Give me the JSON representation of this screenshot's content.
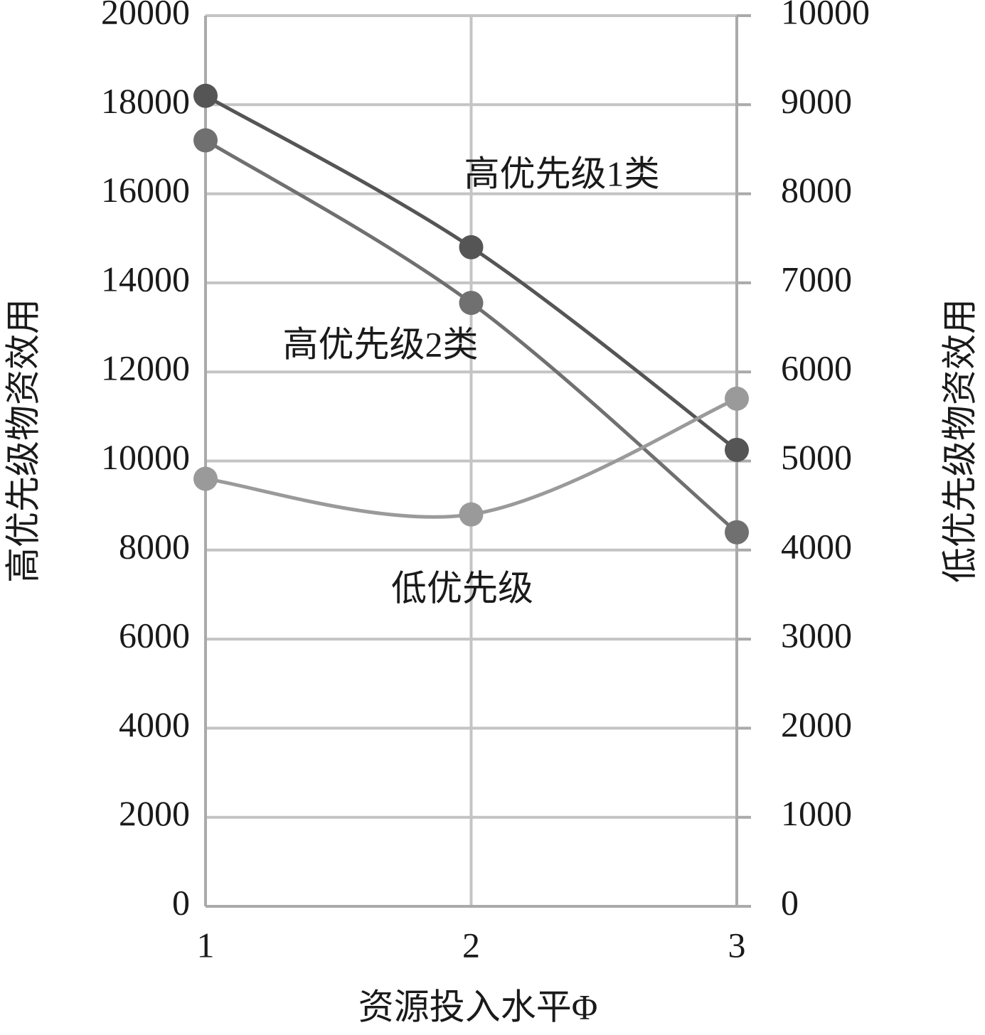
{
  "chart_data": {
    "type": "line",
    "x_label": "资源投入水平Φ",
    "y_label": "高优先级物资效用",
    "y2_label": "低优先级物资效用",
    "x": [
      1,
      2,
      3
    ],
    "xlim": [
      1,
      3
    ],
    "xticks": [
      1,
      2,
      3
    ],
    "ylim": [
      0,
      20000
    ],
    "yticks": [
      0,
      2000,
      4000,
      6000,
      8000,
      10000,
      12000,
      14000,
      16000,
      18000,
      20000
    ],
    "y2lim": [
      0,
      10000
    ],
    "y2ticks": [
      0,
      1000,
      2000,
      3000,
      4000,
      5000,
      6000,
      7000,
      8000,
      9000,
      10000
    ],
    "grid": true,
    "series": [
      {
        "name": "高优先级1类",
        "color": "#555555",
        "values": [
          18200,
          14800,
          10250
        ]
      },
      {
        "name": "高优先级2类",
        "color": "#707070",
        "values": [
          17200,
          13550,
          8400
        ]
      },
      {
        "name": "低优先级",
        "color": "#9a9a9a",
        "values": [
          4800,
          4400,
          5700
        ],
        "axis": "y2"
      }
    ]
  }
}
